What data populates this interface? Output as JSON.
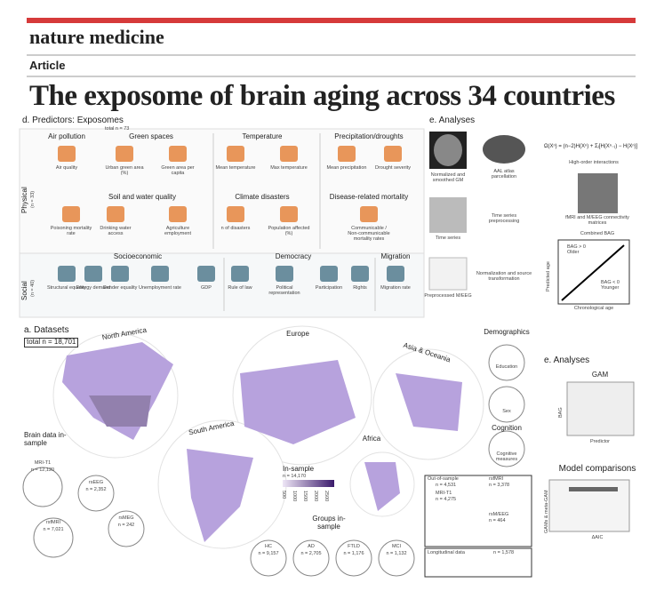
{
  "header": {
    "journal": "nature medicine",
    "section": "Article",
    "title": "The exposome of brain aging across 34 countries"
  },
  "predictors": {
    "title": "d. Predictors: Exposomes",
    "total": "total n = 73",
    "physical": "Physical",
    "physical_n": "(n = 33)",
    "social": "Social",
    "social_n": "(n = 40)",
    "groups": [
      {
        "name": "Air pollution",
        "items": [
          "Air quality"
        ]
      },
      {
        "name": "Green spaces",
        "items": [
          "Urban green area (%)",
          "Green area per capita"
        ]
      },
      {
        "name": "Temperature",
        "items": [
          "Mean temperature",
          "Max temperature"
        ]
      },
      {
        "name": "Precipitation/droughts",
        "items": [
          "Mean precipitation",
          "Drought severity"
        ]
      },
      {
        "name": "Soil and water quality",
        "items": [
          "Poisoning mortality rate",
          "Drinking water access",
          "Agriculture employment"
        ]
      },
      {
        "name": "Climate disasters",
        "items": [
          "n of disasters",
          "Population affected (%)"
        ]
      },
      {
        "name": "Disease-related mortality",
        "items": [
          "Communicable / Non-communicable mortality rates"
        ]
      },
      {
        "name": "Socioeconomic",
        "items": [
          "Structural equality",
          "Energy demand",
          "Gender equality",
          "Unemployment rate",
          "GDP"
        ]
      },
      {
        "name": "Democracy",
        "items": [
          "Rule of law",
          "Political representation",
          "Participation",
          "Rights"
        ]
      },
      {
        "name": "Migration",
        "items": [
          "Migration rate"
        ]
      }
    ]
  },
  "analyses_top": {
    "title": "e. Analyses",
    "normalized": "Normalized and smoothed GM",
    "aal": "AAL atlas parcellation",
    "time_series": "Time series",
    "ts_pre": "Time series preprocessing",
    "preprocessed": "Preprocessed M/EEG",
    "normalization": "Normalization and source transformation",
    "formula": "Ω(Xⁿ) = (n−2)H(Xⁿ) + Σⱼ[H(Xⁿ₋ⱼ) − H(Xⁿ)]",
    "high_order": "High-order interactions",
    "connectivity": "fMRI and M/EEG connectivity matrices",
    "combined": "Combined BAG",
    "y_label": "Predicted age",
    "x_label": "Chronological age",
    "older": "BAG > 0 Older",
    "younger": "BAG < 0 Younger"
  },
  "datasets": {
    "title": "a. Datasets",
    "total": "total n = 18,701",
    "regions": [
      "North America",
      "Europe",
      "Asia & Oceania",
      "South America",
      "Africa"
    ],
    "brain_title": "Brain data in-sample",
    "modalities": [
      {
        "name": "MRI-T1",
        "n": "n = 12,120"
      },
      {
        "name": "rsEEG",
        "n": "n = 2,352"
      },
      {
        "name": "rsfMRI",
        "n": "n = 7,021"
      },
      {
        "name": "rsMEG",
        "n": "n = 242"
      }
    ],
    "in_sample": "In-sample",
    "in_sample_n": "n = 14,170",
    "scale": [
      "500",
      "1000",
      "1500",
      "2000",
      "2500"
    ],
    "groups_title": "Groups in-sample",
    "groups": [
      {
        "name": "HC",
        "n": "n = 9,157"
      },
      {
        "name": "AD",
        "n": "n = 2,705"
      },
      {
        "name": "FTLD",
        "n": "n = 1,176"
      },
      {
        "name": "MCI",
        "n": "n = 1,132"
      }
    ],
    "out_sample": {
      "title": "Out-of-sample",
      "n": "n = 4,531",
      "mri": "MRI-T1",
      "mri_n": "n = 4,275",
      "fmri": "rsfMRI",
      "fmri_n": "n = 3,378",
      "meeg": "rsM/EEG",
      "meeg_n": "n = 464"
    },
    "longitudinal": {
      "title": "Longitudinal data",
      "n": "n = 1,578"
    }
  },
  "demographics": {
    "title": "Demographics",
    "education": "Education",
    "sex": "Sex",
    "cognition": "Cognition",
    "cognitive": "Cognitive measures"
  },
  "analyses_bottom": {
    "title": "e. Analyses",
    "gam": "GAM",
    "bag": "BAG",
    "predictor": "Predictor",
    "comparisons": "Model comparisons",
    "gams": "GAMs & meta-GAM",
    "aic": "ΔAIC"
  }
}
